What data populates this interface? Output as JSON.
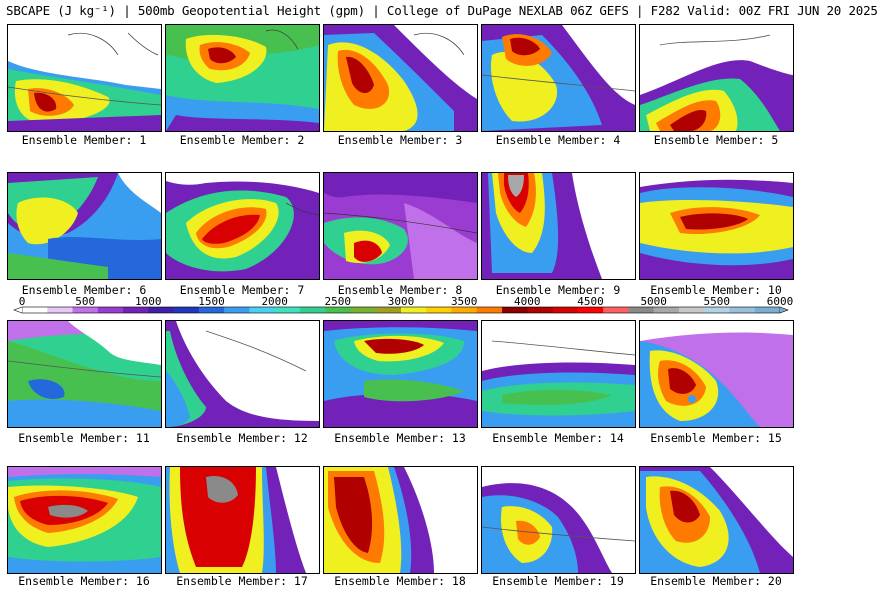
{
  "title": "SBCAPE (J kg⁻¹) | 500mb Geopotential Height (gpm) | College of DuPage NEXLAB 06Z GEFS | F282 Valid: 00Z FRI JUN 20 2025",
  "legend": {
    "ticks": [
      "0",
      "500",
      "1000",
      "1500",
      "2000",
      "2500",
      "3000",
      "3500",
      "4000",
      "4500",
      "5000",
      "5500",
      "6000"
    ],
    "min": 0,
    "max": 6000,
    "colors": [
      "#ffffff",
      "#e8c8f8",
      "#c070e8",
      "#9a3cd2",
      "#7222b8",
      "#4020a8",
      "#2038c0",
      "#2468dc",
      "#3a9ef0",
      "#4ad0f4",
      "#40e0c0",
      "#30d090",
      "#48c050",
      "#78b030",
      "#a0a020",
      "#f0f020",
      "#ffd000",
      "#ffaa00",
      "#ff7a00",
      "#8a0000",
      "#b00000",
      "#d80000",
      "#ff0000",
      "#ff6060",
      "#8a8a8a",
      "#a8a8a8",
      "#c8c8c8",
      "#b4d2e6",
      "#96c0dc",
      "#78aed0"
    ]
  },
  "members": [
    {
      "label": "Ensemble Member: 1"
    },
    {
      "label": "Ensemble Member: 2"
    },
    {
      "label": "Ensemble Member: 3"
    },
    {
      "label": "Ensemble Member: 4"
    },
    {
      "label": "Ensemble Member: 5"
    },
    {
      "label": "Ensemble Member: 6"
    },
    {
      "label": "Ensemble Member: 7"
    },
    {
      "label": "Ensemble Member: 8"
    },
    {
      "label": "Ensemble Member: 9"
    },
    {
      "label": "Ensemble Member: 10"
    },
    {
      "label": "Ensemble Member: 11"
    },
    {
      "label": "Ensemble Member: 12"
    },
    {
      "label": "Ensemble Member: 13"
    },
    {
      "label": "Ensemble Member: 14"
    },
    {
      "label": "Ensemble Member: 15"
    },
    {
      "label": "Ensemble Member: 16"
    },
    {
      "label": "Ensemble Member: 17"
    },
    {
      "label": "Ensemble Member: 18"
    },
    {
      "label": "Ensemble Member: 19"
    },
    {
      "label": "Ensemble Member: 20"
    }
  ]
}
